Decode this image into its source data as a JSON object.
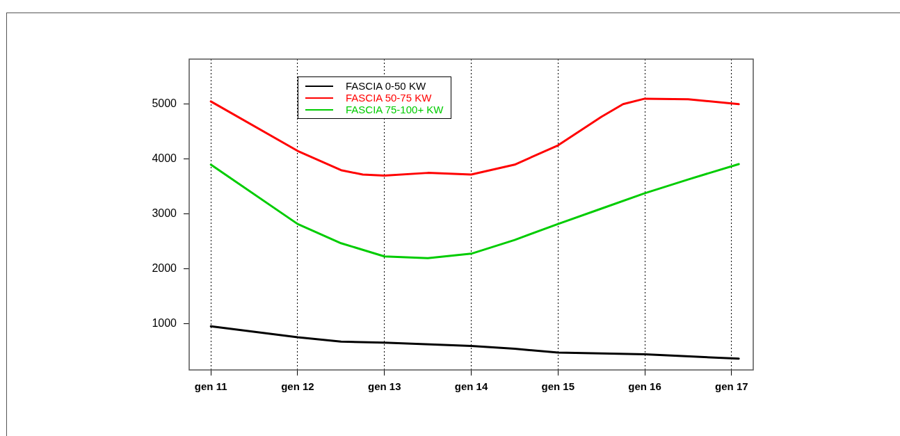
{
  "chart_data": {
    "type": "line",
    "x": [
      "2011-01",
      "2012-01",
      "2012-07",
      "2013-01",
      "2013-07",
      "2014-01",
      "2014-07",
      "2015-01",
      "2015-07",
      "2016-01",
      "2016-07",
      "2017-02"
    ],
    "series": [
      {
        "name": "FASCIA 0-50 KW",
        "color": "#000000",
        "x": [
          "2011-01",
          "2012-01",
          "2012-07",
          "2013-01",
          "2014-01",
          "2014-07",
          "2015-01",
          "2016-01",
          "2017-02"
        ],
        "values": [
          960,
          760,
          680,
          660,
          600,
          550,
          480,
          450,
          370
        ]
      },
      {
        "name": "FASCIA 50-75 KW",
        "color": "#ff0000",
        "x": [
          "2011-01",
          "2012-01",
          "2012-07",
          "2012-10",
          "2013-01",
          "2013-07",
          "2014-01",
          "2014-07",
          "2015-01",
          "2015-07",
          "2015-10",
          "2016-01",
          "2016-07",
          "2017-02"
        ],
        "values": [
          5050,
          4150,
          3800,
          3720,
          3700,
          3750,
          3720,
          3900,
          4250,
          4770,
          5000,
          5100,
          5090,
          5000
        ]
      },
      {
        "name": "FASCIA 75-100+ KW",
        "color": "#00cc00",
        "values": [
          3900,
          2820,
          2470,
          2230,
          2200,
          2280,
          2530,
          2820,
          3100,
          3380,
          3630,
          3910
        ]
      }
    ],
    "xlim": [
      "2010-10",
      "2017-04"
    ],
    "xticks": [
      {
        "value": "2011-01",
        "label": "gen 11"
      },
      {
        "value": "2012-01",
        "label": "gen 12"
      },
      {
        "value": "2013-01",
        "label": "gen 13"
      },
      {
        "value": "2014-01",
        "label": "gen 14"
      },
      {
        "value": "2015-01",
        "label": "gen 15"
      },
      {
        "value": "2016-01",
        "label": "gen 16"
      },
      {
        "value": "2017-01",
        "label": "gen 17"
      }
    ],
    "ylim": [
      165,
      5820
    ],
    "yticks": [
      1000,
      2000,
      3000,
      4000,
      5000
    ],
    "grid": "x",
    "line_style": "solid",
    "legend": "top"
  }
}
